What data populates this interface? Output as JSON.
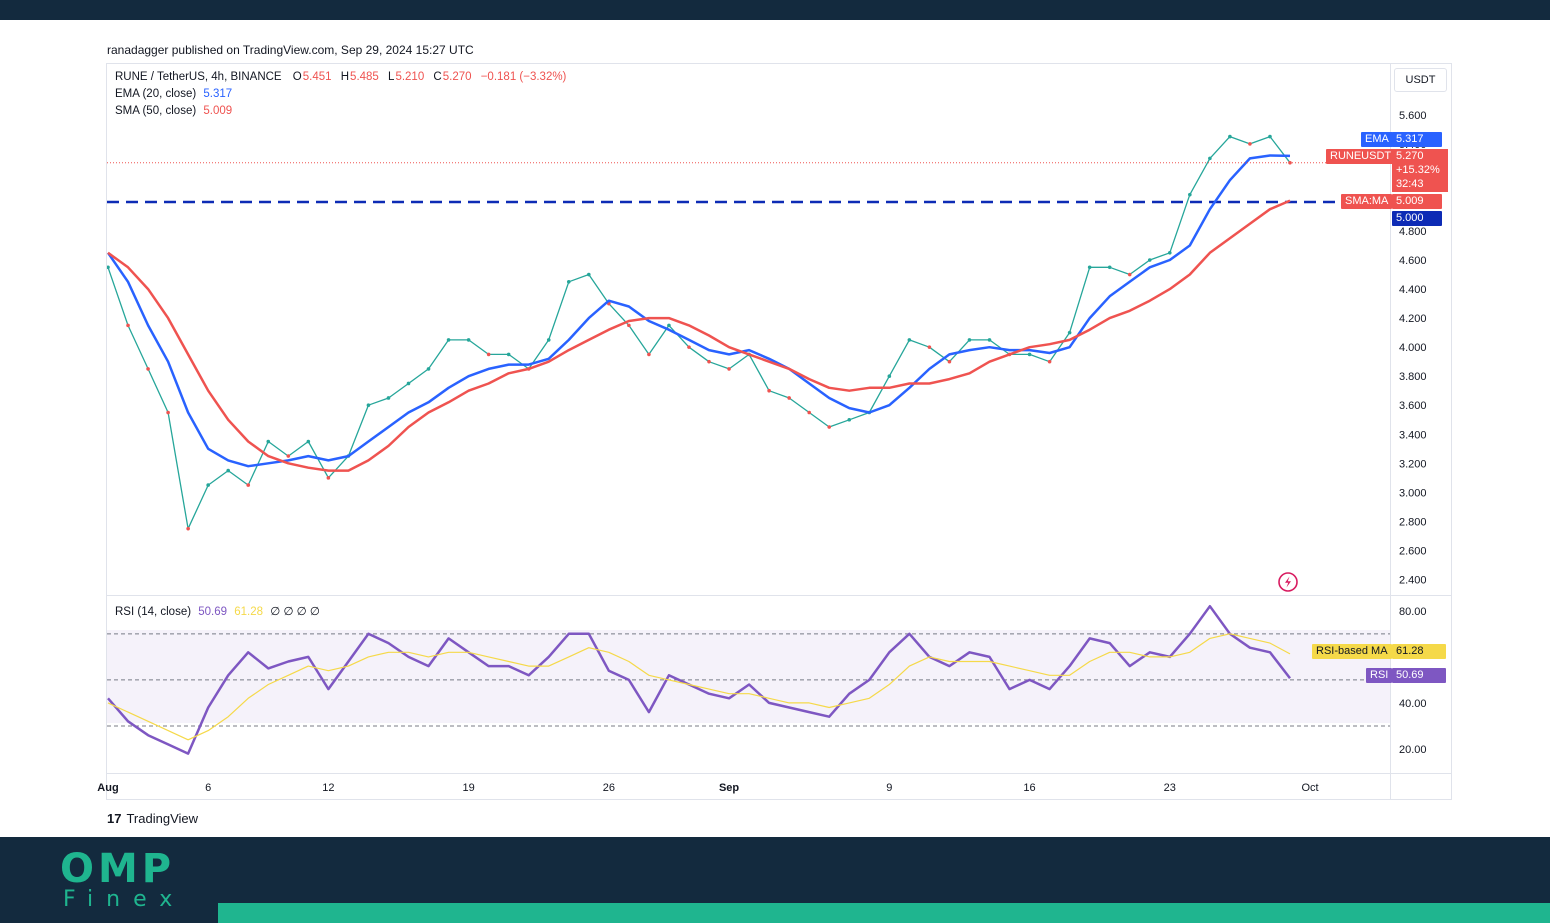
{
  "publisher_line": "ranadagger published on TradingView.com, Sep 29, 2024 15:27 UTC",
  "brand": {
    "tv_logo": "17",
    "tv_name": "TradingView",
    "omp": "OMP",
    "finex": "Finex"
  },
  "colors": {
    "ema": "#2962ff",
    "sma": "#ef5350",
    "rsi": "#7e57c2",
    "rsi_ma": "#f5d949",
    "up": "#26a69a",
    "down": "#ef5350",
    "support": "#0d2bb5",
    "header": "#132a3e",
    "accent": "#1fb58f"
  },
  "main_legend": {
    "symbol": "RUNE / TetherUS, 4h, BINANCE",
    "o_label": "O",
    "o_value": "5.451",
    "h_label": "H",
    "h_value": "5.485",
    "l_label": "L",
    "l_value": "5.210",
    "c_label": "C",
    "c_value": "5.270",
    "change": "−0.181 (−3.32%)",
    "ema_label": "EMA (20, close)",
    "ema_value": "5.317",
    "sma_label": "SMA (50, close)",
    "sma_value": "5.009"
  },
  "rsi_legend": {
    "label": "RSI (14, close)",
    "rsi_value": "50.69",
    "ma_value": "61.28",
    "extras": "∅ ∅ ∅ ∅"
  },
  "price_axis": {
    "currency": "USDT"
  },
  "tags": {
    "ema_name": "EMA",
    "ema_value": "5.317",
    "symbol_name": "RUNEUSDT",
    "price": "5.270",
    "pct": "+15.32%",
    "countdown": "32:43",
    "sma_name": "SMA:MA",
    "sma_value": "5.009",
    "level": "5.000",
    "rsi_ma_name": "RSI-based MA",
    "rsi_ma_value": "61.28",
    "rsi_name": "RSI",
    "rsi_value": "50.69"
  },
  "chart_data": {
    "type": "line",
    "title": "RUNE / TetherUS, 4h, BINANCE",
    "xlabel": "",
    "ylabel": "USDT",
    "ylim": [
      2.3,
      5.95
    ],
    "x_ticks": [
      "Aug",
      "6",
      "12",
      "19",
      "26",
      "Sep",
      "9",
      "16",
      "23",
      "Oct"
    ],
    "y_ticks": [
      "2.400",
      "2.600",
      "2.800",
      "3.000",
      "3.200",
      "3.400",
      "3.600",
      "3.800",
      "4.000",
      "4.200",
      "4.400",
      "4.600",
      "4.800",
      "5.000",
      "5.200",
      "5.400",
      "5.600"
    ],
    "x": [
      "Aug 1",
      "Aug 2",
      "Aug 3",
      "Aug 4",
      "Aug 5",
      "Aug 6",
      "Aug 7",
      "Aug 8",
      "Aug 9",
      "Aug 10",
      "Aug 11",
      "Aug 12",
      "Aug 13",
      "Aug 14",
      "Aug 15",
      "Aug 16",
      "Aug 17",
      "Aug 18",
      "Aug 19",
      "Aug 20",
      "Aug 21",
      "Aug 22",
      "Aug 23",
      "Aug 24",
      "Aug 25",
      "Aug 26",
      "Aug 27",
      "Aug 28",
      "Aug 29",
      "Aug 30",
      "Aug 31",
      "Sep 1",
      "Sep 2",
      "Sep 3",
      "Sep 4",
      "Sep 5",
      "Sep 6",
      "Sep 7",
      "Sep 8",
      "Sep 9",
      "Sep 10",
      "Sep 11",
      "Sep 12",
      "Sep 13",
      "Sep 14",
      "Sep 15",
      "Sep 16",
      "Sep 17",
      "Sep 18",
      "Sep 19",
      "Sep 20",
      "Sep 21",
      "Sep 22",
      "Sep 23",
      "Sep 24",
      "Sep 25",
      "Sep 26",
      "Sep 27",
      "Sep 28",
      "Sep 29"
    ],
    "series": [
      {
        "name": "RUNEUSDT",
        "values": [
          4.55,
          4.15,
          3.85,
          3.55,
          2.75,
          3.05,
          3.15,
          3.05,
          3.35,
          3.25,
          3.35,
          3.1,
          3.25,
          3.6,
          3.65,
          3.75,
          3.85,
          4.05,
          4.05,
          3.95,
          3.95,
          3.85,
          4.05,
          4.45,
          4.5,
          4.3,
          4.15,
          3.95,
          4.15,
          4.0,
          3.9,
          3.85,
          3.95,
          3.7,
          3.65,
          3.55,
          3.45,
          3.5,
          3.55,
          3.8,
          4.05,
          4.0,
          3.9,
          4.05,
          4.05,
          3.95,
          3.95,
          3.9,
          4.1,
          4.55,
          4.55,
          4.5,
          4.6,
          4.65,
          5.05,
          5.3,
          5.45,
          5.4,
          5.45,
          5.27
        ]
      },
      {
        "name": "EMA",
        "values": [
          4.65,
          4.45,
          4.15,
          3.9,
          3.55,
          3.3,
          3.22,
          3.18,
          3.2,
          3.22,
          3.25,
          3.22,
          3.25,
          3.35,
          3.45,
          3.55,
          3.62,
          3.72,
          3.8,
          3.85,
          3.88,
          3.88,
          3.92,
          4.05,
          4.2,
          4.32,
          4.28,
          4.18,
          4.12,
          4.05,
          3.98,
          3.95,
          3.98,
          3.92,
          3.85,
          3.75,
          3.65,
          3.58,
          3.55,
          3.6,
          3.72,
          3.85,
          3.95,
          3.98,
          4.0,
          3.98,
          3.98,
          3.96,
          4.0,
          4.2,
          4.35,
          4.45,
          4.55,
          4.6,
          4.7,
          4.95,
          5.15,
          5.3,
          5.32,
          5.317
        ]
      },
      {
        "name": "SMA",
        "values": [
          4.65,
          4.55,
          4.4,
          4.2,
          3.95,
          3.7,
          3.5,
          3.35,
          3.25,
          3.2,
          3.17,
          3.15,
          3.15,
          3.22,
          3.32,
          3.45,
          3.55,
          3.62,
          3.7,
          3.75,
          3.82,
          3.85,
          3.9,
          3.98,
          4.05,
          4.12,
          4.18,
          4.2,
          4.2,
          4.15,
          4.08,
          4.0,
          3.95,
          3.9,
          3.85,
          3.78,
          3.72,
          3.7,
          3.72,
          3.72,
          3.75,
          3.75,
          3.78,
          3.82,
          3.9,
          3.95,
          4.0,
          4.02,
          4.05,
          4.12,
          4.2,
          4.25,
          4.32,
          4.4,
          4.5,
          4.65,
          4.75,
          4.85,
          4.95,
          5.009
        ]
      }
    ],
    "support_level": 5.0,
    "rsi": {
      "ylim": [
        10,
        86
      ],
      "y_ticks": [
        "20.00",
        "40.00",
        "80.00"
      ],
      "bands": [
        30,
        50,
        70
      ],
      "series": [
        {
          "name": "RSI",
          "values": [
            42,
            32,
            26,
            22,
            18,
            38,
            52,
            62,
            55,
            58,
            60,
            46,
            58,
            70,
            66,
            60,
            56,
            68,
            62,
            56,
            56,
            52,
            60,
            70,
            70,
            54,
            50,
            36,
            52,
            48,
            44,
            42,
            48,
            40,
            38,
            36,
            34,
            44,
            50,
            62,
            70,
            60,
            56,
            62,
            60,
            46,
            50,
            46,
            56,
            68,
            66,
            56,
            62,
            60,
            70,
            82,
            70,
            64,
            62,
            50.69
          ]
        },
        {
          "name": "RSI-based MA",
          "values": [
            40,
            36,
            32,
            28,
            24,
            28,
            34,
            42,
            48,
            52,
            56,
            54,
            56,
            60,
            62,
            62,
            60,
            62,
            62,
            60,
            58,
            56,
            56,
            60,
            64,
            62,
            58,
            52,
            50,
            48,
            46,
            44,
            44,
            42,
            40,
            40,
            38,
            40,
            42,
            48,
            56,
            60,
            58,
            58,
            58,
            56,
            54,
            52,
            52,
            58,
            62,
            62,
            60,
            60,
            62,
            68,
            70,
            68,
            66,
            61.28
          ]
        }
      ]
    }
  }
}
